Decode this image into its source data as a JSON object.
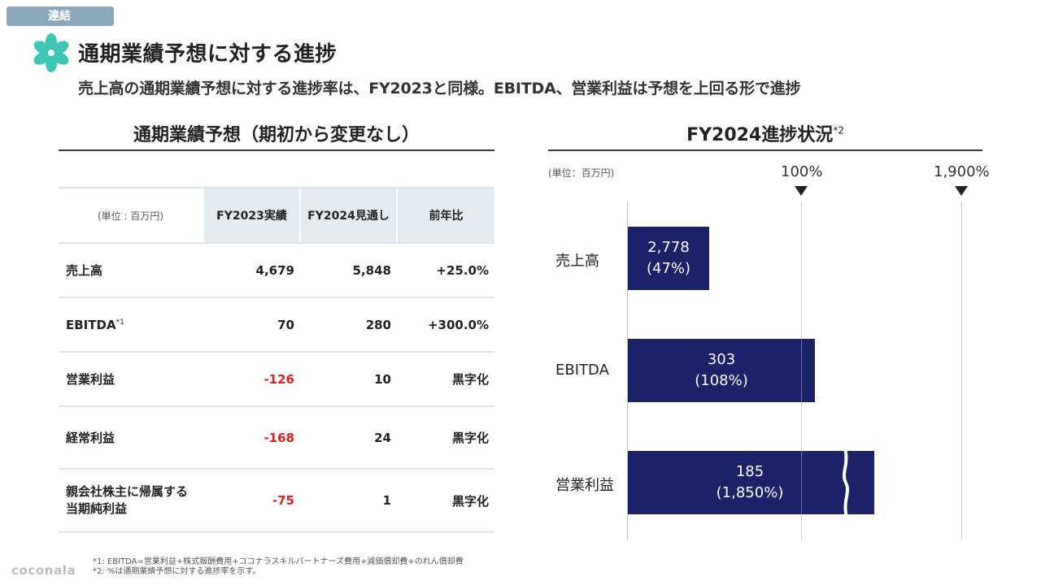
{
  "tag": "連結",
  "title": "通期業績予想に対する進捗",
  "subtitle": "売上高の通期業績予想に対する進捗率は、FY2023と同様。EBITDA、営業利益は予想を上回る形で進捗",
  "left": {
    "section_title": "通期業績予想（期初から変更なし）",
    "table": {
      "unit": "(単位 : 百万円)",
      "headers": [
        "FY2023実績",
        "FY2024見通し",
        "前年比"
      ],
      "rows": [
        {
          "label": "売上高",
          "fy2023": "4,679",
          "fy2024": "5,848",
          "yoy": "+25.0%"
        },
        {
          "label": "EBITDA",
          "note": "*1",
          "fy2023": "70",
          "fy2024": "280",
          "yoy": "+300.0%"
        },
        {
          "label": "営業利益",
          "fy2023": "-126",
          "fy2024": "10",
          "yoy": "黒字化"
        },
        {
          "label": "経常利益",
          "fy2023": "-168",
          "fy2024": "24",
          "yoy": "黒字化"
        },
        {
          "label_line1": "親会社株主に帰属する",
          "label_line2": "当期純利益",
          "fy2023": "-75",
          "fy2024": "1",
          "yoy": "黒字化"
        }
      ]
    }
  },
  "right": {
    "section_title": "FY2024進捗状況",
    "section_note": "*2",
    "unit": "(単位：百万円)",
    "ref_labels": [
      "100%",
      "1,900%"
    ],
    "chart_data": {
      "type": "bar",
      "orientation": "horizontal",
      "categories": [
        "売上高",
        "EBITDA",
        "営業利益"
      ],
      "values": [
        2778,
        303,
        185
      ],
      "progress_pct": [
        47,
        108,
        1850
      ],
      "value_labels": [
        "2,778",
        "303",
        "185"
      ],
      "pct_labels": [
        "(47%)",
        "(108%)",
        "(1,850%)"
      ],
      "reference_lines": [
        "100%",
        "1,900%"
      ],
      "axis_break": "営業利益",
      "bar_color": "#1b2268"
    }
  },
  "footnotes": [
    "*1: EBITDA=営業利益+株式報酬費用+ココナラスキルパートナーズ費用+減価償却費+のれん償却費",
    "*2: %は通期業績予想に対する進捗率を示す。"
  ],
  "brand": "coconala",
  "colors": {
    "navy": "#1b2268",
    "negative": "#e02020",
    "tag": "#8aa6bb",
    "logo": "#3ec6b4"
  }
}
